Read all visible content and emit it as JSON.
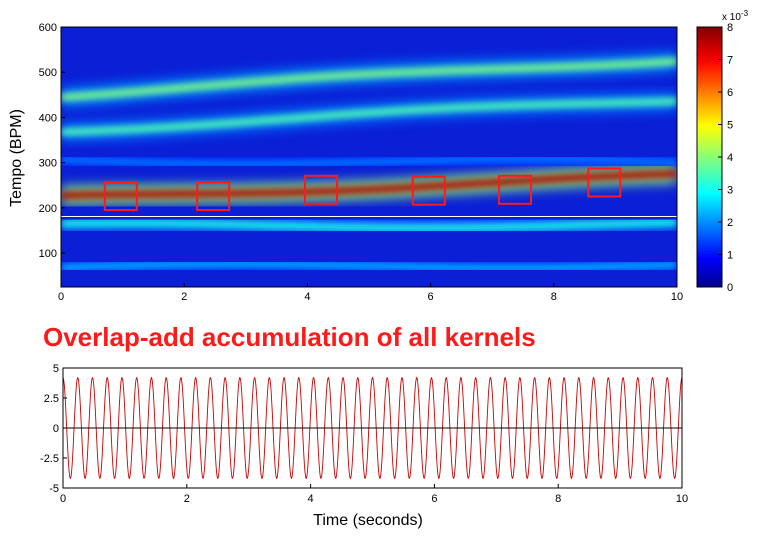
{
  "chart_data": [
    {
      "type": "heatmap",
      "title": "",
      "xlabel": "",
      "ylabel": "Tempo (BPM)",
      "xlim": [
        0,
        10
      ],
      "ylim": [
        25,
        600
      ],
      "x_ticks": [
        "0",
        "2",
        "4",
        "6",
        "8",
        "10"
      ],
      "y_ticks": [
        "100",
        "200",
        "300",
        "400",
        "500",
        "600"
      ],
      "colormap": "jet",
      "colorbar": {
        "range": [
          0,
          8
        ],
        "ticks": [
          "0",
          "1",
          "2",
          "3",
          "4",
          "5",
          "6",
          "7",
          "8"
        ],
        "exponent_label": "x 10",
        "exponent": "-3"
      },
      "tempo_bands": [
        {
          "tempo_start": 68,
          "tempo_end": 75,
          "intensity": 0.3
        },
        {
          "tempo_start": 160,
          "tempo_end": 163,
          "intensity": 0.4
        },
        {
          "tempo_start": 222,
          "tempo_end": 270,
          "intensity": 0.95
        },
        {
          "tempo_start": 305,
          "tempo_end": 300,
          "intensity": 0.25
        },
        {
          "tempo_start": 372,
          "tempo_end": 440,
          "intensity": 0.45
        },
        {
          "tempo_start": 450,
          "tempo_end": 530,
          "intensity": 0.5
        }
      ],
      "kernel_boxes": [
        {
          "time": 0.97,
          "tempo": 226
        },
        {
          "time": 2.47,
          "tempo": 226
        },
        {
          "time": 4.22,
          "tempo": 240
        },
        {
          "time": 5.97,
          "tempo": 238
        },
        {
          "time": 7.37,
          "tempo": 240
        },
        {
          "time": 8.82,
          "tempo": 256
        }
      ],
      "horizontal_marker_tempo": 181
    },
    {
      "type": "line",
      "title": "Overlap-add accumulation of all kernels",
      "xlabel": "Time (seconds)",
      "ylabel": "",
      "xlim": [
        0,
        10
      ],
      "ylim": [
        -5,
        5
      ],
      "x_ticks": [
        "0",
        "2",
        "4",
        "6",
        "8",
        "10"
      ],
      "y_ticks": [
        "5",
        "2.5",
        "0",
        "-2.5",
        "-5"
      ],
      "series": [
        {
          "amplitude": 4.2,
          "cycles": 42,
          "color": "#cc0000"
        }
      ],
      "zero_line": true
    }
  ]
}
